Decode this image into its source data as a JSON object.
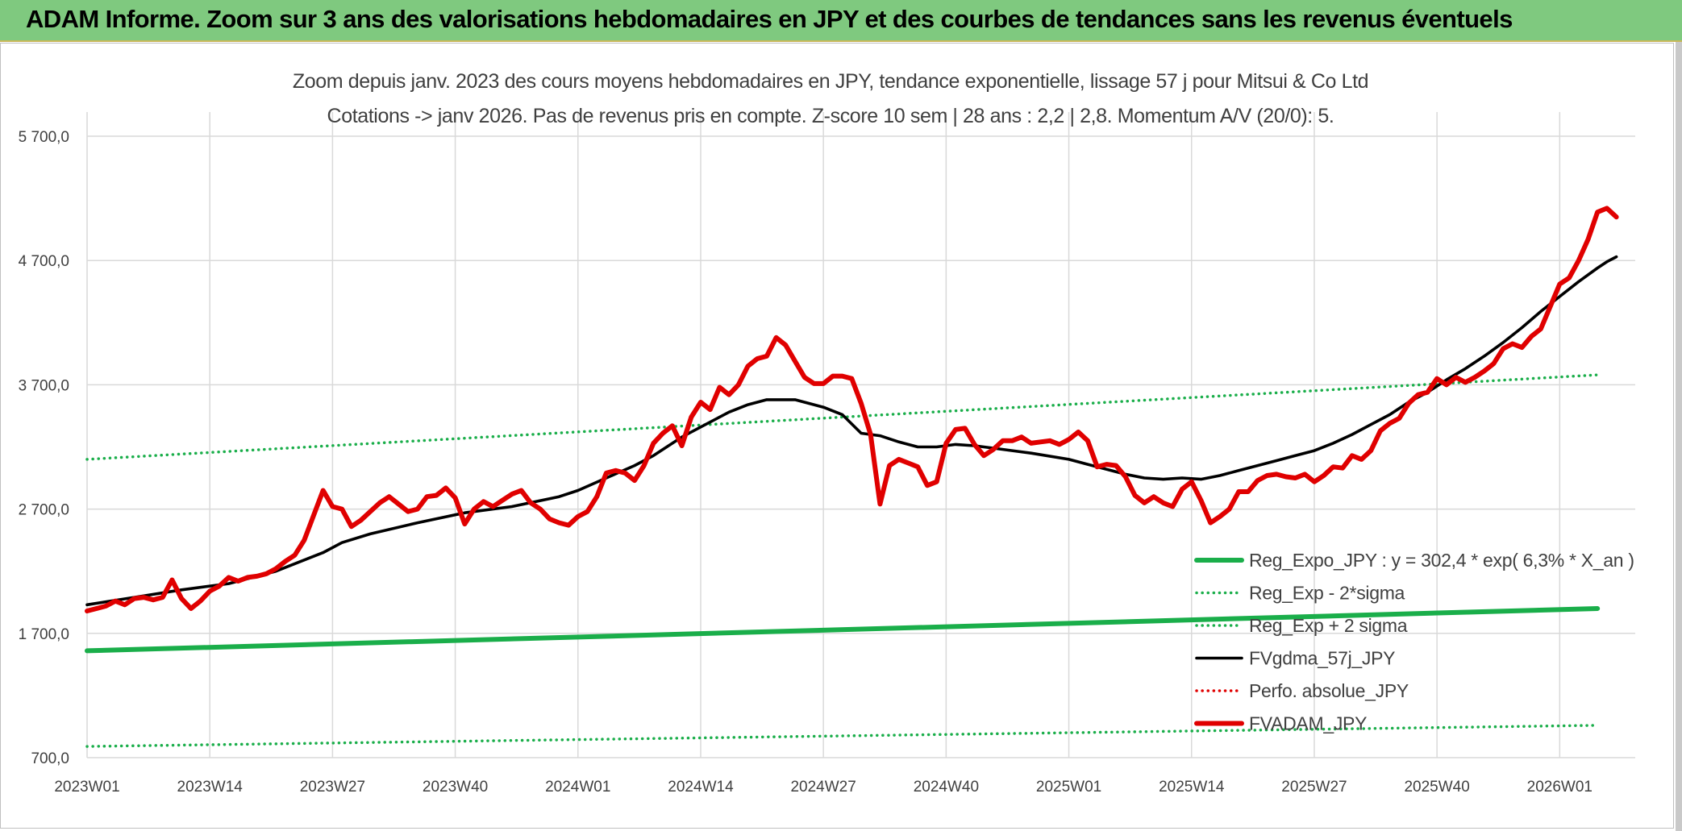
{
  "page": {
    "banner_title": "ADAM Informe. Zoom sur 3 ans des valorisations hebdomadaires en JPY et des courbes de tendances sans les revenus éventuels"
  },
  "chart_data": {
    "type": "line",
    "title_line1": "Zoom depuis janv. 2023 des cours moyens hebdomadaires en JPY, tendance exponentielle, lissage 57 j pour Mitsui & Co Ltd",
    "title_line2": "Cotations -> janv 2026. Pas de revenus pris en compte. Z-score 10 sem | 28 ans : 2,2 | 2,8. Momentum A/V (20/0): 5.",
    "ylim": [
      700,
      5700
    ],
    "y_ticks": [
      {
        "value": 700,
        "label": "700,0"
      },
      {
        "value": 1700,
        "label": "1 700,0"
      },
      {
        "value": 2700,
        "label": "2 700,0"
      },
      {
        "value": 3700,
        "label": "3 700,0"
      },
      {
        "value": 4700,
        "label": "4 700,0"
      },
      {
        "value": 5700,
        "label": "5 700,0"
      }
    ],
    "x_range": [
      0,
      164
    ],
    "x_ticks": [
      {
        "index": 0,
        "label": "2023W01"
      },
      {
        "index": 13,
        "label": "2023W14"
      },
      {
        "index": 26,
        "label": "2023W27"
      },
      {
        "index": 39,
        "label": "2023W40"
      },
      {
        "index": 52,
        "label": "2024W01"
      },
      {
        "index": 65,
        "label": "2024W14"
      },
      {
        "index": 78,
        "label": "2024W27"
      },
      {
        "index": 91,
        "label": "2024W40"
      },
      {
        "index": 104,
        "label": "2025W01"
      },
      {
        "index": 117,
        "label": "2025W14"
      },
      {
        "index": 130,
        "label": "2025W27"
      },
      {
        "index": 143,
        "label": "2025W40"
      },
      {
        "index": 156,
        "label": "2026W01"
      }
    ],
    "colors": {
      "reg_expo": "#1aae4a",
      "sigma": "#1aae4a",
      "fvgdma": "#000000",
      "perfo": "#e00000",
      "fvadam": "#e00000",
      "grid": "#d9d9d9",
      "text": "#404040"
    },
    "series": [
      {
        "name": "Reg_Expo_JPY : y = 302,4 * exp( 6,3% *  X_an )",
        "style": "solid-thick",
        "color": "#1aae4a",
        "points": [
          [
            0,
            1560
          ],
          [
            160,
            1900
          ]
        ]
      },
      {
        "name": "Reg_Exp - 2*sigma",
        "style": "dotted",
        "color": "#1aae4a",
        "points": [
          [
            0,
            790
          ],
          [
            160,
            960
          ]
        ]
      },
      {
        "name": "Reg_Exp + 2 sigma",
        "style": "dotted",
        "color": "#1aae4a",
        "points": [
          [
            0,
            3100
          ],
          [
            160,
            3780
          ]
        ]
      },
      {
        "name": "FVgdma_57j_JPY",
        "style": "solid",
        "color": "#000000",
        "points": [
          [
            0,
            1930
          ],
          [
            5,
            1990
          ],
          [
            10,
            2050
          ],
          [
            15,
            2100
          ],
          [
            20,
            2200
          ],
          [
            25,
            2350
          ],
          [
            27,
            2430
          ],
          [
            30,
            2500
          ],
          [
            35,
            2590
          ],
          [
            40,
            2670
          ],
          [
            45,
            2720
          ],
          [
            50,
            2800
          ],
          [
            52,
            2850
          ],
          [
            55,
            2950
          ],
          [
            58,
            3050
          ],
          [
            60,
            3130
          ],
          [
            63,
            3280
          ],
          [
            65,
            3360
          ],
          [
            68,
            3480
          ],
          [
            70,
            3540
          ],
          [
            72,
            3580
          ],
          [
            75,
            3580
          ],
          [
            78,
            3520
          ],
          [
            80,
            3460
          ],
          [
            82,
            3310
          ],
          [
            84,
            3290
          ],
          [
            86,
            3240
          ],
          [
            88,
            3200
          ],
          [
            90,
            3200
          ],
          [
            92,
            3220
          ],
          [
            94,
            3210
          ],
          [
            96,
            3190
          ],
          [
            98,
            3170
          ],
          [
            100,
            3150
          ],
          [
            104,
            3100
          ],
          [
            106,
            3060
          ],
          [
            108,
            3020
          ],
          [
            110,
            2980
          ],
          [
            112,
            2950
          ],
          [
            114,
            2940
          ],
          [
            116,
            2950
          ],
          [
            118,
            2940
          ],
          [
            120,
            2970
          ],
          [
            122,
            3010
          ],
          [
            124,
            3050
          ],
          [
            126,
            3090
          ],
          [
            128,
            3130
          ],
          [
            130,
            3170
          ],
          [
            132,
            3230
          ],
          [
            134,
            3300
          ],
          [
            136,
            3380
          ],
          [
            138,
            3460
          ],
          [
            140,
            3560
          ],
          [
            142,
            3640
          ],
          [
            144,
            3740
          ],
          [
            146,
            3830
          ],
          [
            148,
            3930
          ],
          [
            150,
            4040
          ],
          [
            152,
            4160
          ],
          [
            154,
            4290
          ],
          [
            156,
            4410
          ],
          [
            158,
            4530
          ],
          [
            160,
            4640
          ],
          [
            161,
            4690
          ],
          [
            162,
            4730
          ]
        ]
      },
      {
        "name": "Perfo. absolue_JPY",
        "style": "dotted",
        "color": "#e00000",
        "points": []
      },
      {
        "name": "FVADAM_JPY",
        "style": "solid-thick",
        "color": "#e00000",
        "points": [
          [
            0,
            1880
          ],
          [
            1,
            1900
          ],
          [
            2,
            1920
          ],
          [
            3,
            1960
          ],
          [
            4,
            1930
          ],
          [
            5,
            1980
          ],
          [
            6,
            1990
          ],
          [
            7,
            1970
          ],
          [
            8,
            1990
          ],
          [
            9,
            2130
          ],
          [
            10,
            1980
          ],
          [
            11,
            1900
          ],
          [
            12,
            1960
          ],
          [
            13,
            2040
          ],
          [
            14,
            2080
          ],
          [
            15,
            2150
          ],
          [
            16,
            2120
          ],
          [
            17,
            2150
          ],
          [
            18,
            2160
          ],
          [
            19,
            2180
          ],
          [
            20,
            2220
          ],
          [
            21,
            2280
          ],
          [
            22,
            2330
          ],
          [
            23,
            2450
          ],
          [
            24,
            2650
          ],
          [
            25,
            2850
          ],
          [
            26,
            2720
          ],
          [
            27,
            2700
          ],
          [
            28,
            2560
          ],
          [
            29,
            2610
          ],
          [
            30,
            2680
          ],
          [
            31,
            2750
          ],
          [
            32,
            2800
          ],
          [
            33,
            2740
          ],
          [
            34,
            2680
          ],
          [
            35,
            2700
          ],
          [
            36,
            2800
          ],
          [
            37,
            2810
          ],
          [
            38,
            2870
          ],
          [
            39,
            2790
          ],
          [
            40,
            2580
          ],
          [
            41,
            2700
          ],
          [
            42,
            2760
          ],
          [
            43,
            2720
          ],
          [
            44,
            2770
          ],
          [
            45,
            2820
          ],
          [
            46,
            2850
          ],
          [
            47,
            2750
          ],
          [
            48,
            2700
          ],
          [
            49,
            2620
          ],
          [
            50,
            2590
          ],
          [
            51,
            2570
          ],
          [
            52,
            2640
          ],
          [
            53,
            2680
          ],
          [
            54,
            2800
          ],
          [
            55,
            2990
          ],
          [
            56,
            3010
          ],
          [
            57,
            2990
          ],
          [
            58,
            2930
          ],
          [
            59,
            3050
          ],
          [
            60,
            3230
          ],
          [
            61,
            3310
          ],
          [
            62,
            3370
          ],
          [
            63,
            3210
          ],
          [
            64,
            3440
          ],
          [
            65,
            3560
          ],
          [
            66,
            3500
          ],
          [
            67,
            3680
          ],
          [
            68,
            3620
          ],
          [
            69,
            3700
          ],
          [
            70,
            3850
          ],
          [
            71,
            3910
          ],
          [
            72,
            3930
          ],
          [
            73,
            4080
          ],
          [
            74,
            4020
          ],
          [
            75,
            3890
          ],
          [
            76,
            3760
          ],
          [
            77,
            3710
          ],
          [
            78,
            3710
          ],
          [
            79,
            3770
          ],
          [
            80,
            3770
          ],
          [
            81,
            3750
          ],
          [
            82,
            3550
          ],
          [
            83,
            3300
          ],
          [
            84,
            2740
          ],
          [
            85,
            3050
          ],
          [
            86,
            3100
          ],
          [
            87,
            3070
          ],
          [
            88,
            3040
          ],
          [
            89,
            2890
          ],
          [
            90,
            2920
          ],
          [
            91,
            3230
          ],
          [
            92,
            3340
          ],
          [
            93,
            3350
          ],
          [
            94,
            3220
          ],
          [
            95,
            3130
          ],
          [
            96,
            3180
          ],
          [
            97,
            3250
          ],
          [
            98,
            3250
          ],
          [
            99,
            3280
          ],
          [
            100,
            3230
          ],
          [
            101,
            3240
          ],
          [
            102,
            3250
          ],
          [
            103,
            3220
          ],
          [
            104,
            3260
          ],
          [
            105,
            3320
          ],
          [
            106,
            3250
          ],
          [
            107,
            3040
          ],
          [
            108,
            3060
          ],
          [
            109,
            3050
          ],
          [
            110,
            2960
          ],
          [
            111,
            2810
          ],
          [
            112,
            2750
          ],
          [
            113,
            2800
          ],
          [
            114,
            2750
          ],
          [
            115,
            2720
          ],
          [
            116,
            2860
          ],
          [
            117,
            2920
          ],
          [
            118,
            2770
          ],
          [
            119,
            2590
          ],
          [
            120,
            2640
          ],
          [
            121,
            2700
          ],
          [
            122,
            2840
          ],
          [
            123,
            2840
          ],
          [
            124,
            2930
          ],
          [
            125,
            2970
          ],
          [
            126,
            2980
          ],
          [
            127,
            2960
          ],
          [
            128,
            2950
          ],
          [
            129,
            2980
          ],
          [
            130,
            2920
          ],
          [
            131,
            2970
          ],
          [
            132,
            3040
          ],
          [
            133,
            3030
          ],
          [
            134,
            3130
          ],
          [
            135,
            3100
          ],
          [
            136,
            3170
          ],
          [
            137,
            3330
          ],
          [
            138,
            3390
          ],
          [
            139,
            3430
          ],
          [
            140,
            3550
          ],
          [
            141,
            3620
          ],
          [
            142,
            3640
          ],
          [
            143,
            3750
          ],
          [
            144,
            3700
          ],
          [
            145,
            3760
          ],
          [
            146,
            3720
          ],
          [
            147,
            3760
          ],
          [
            148,
            3810
          ],
          [
            149,
            3870
          ],
          [
            150,
            3990
          ],
          [
            151,
            4030
          ],
          [
            152,
            4000
          ],
          [
            153,
            4090
          ],
          [
            154,
            4150
          ],
          [
            155,
            4330
          ],
          [
            156,
            4510
          ],
          [
            157,
            4560
          ],
          [
            158,
            4700
          ],
          [
            159,
            4870
          ],
          [
            160,
            5090
          ],
          [
            161,
            5120
          ],
          [
            162,
            5050
          ]
        ]
      }
    ],
    "legend": [
      {
        "label": "Reg_Expo_JPY : y = 302,4 * exp( 6,3% *  X_an )",
        "style": "solid-thick",
        "color": "#1aae4a"
      },
      {
        "label": "Reg_Exp - 2*sigma",
        "style": "dotted",
        "color": "#1aae4a"
      },
      {
        "label": "Reg_Exp + 2 sigma",
        "style": "dotted",
        "color": "#1aae4a"
      },
      {
        "label": "FVgdma_57j_JPY",
        "style": "solid",
        "color": "#000000"
      },
      {
        "label": "Perfo. absolue_JPY",
        "style": "dotted",
        "color": "#e00000"
      },
      {
        "label": "FVADAM_JPY",
        "style": "solid-thick",
        "color": "#e00000"
      }
    ],
    "legend_position": "bottom-right"
  }
}
